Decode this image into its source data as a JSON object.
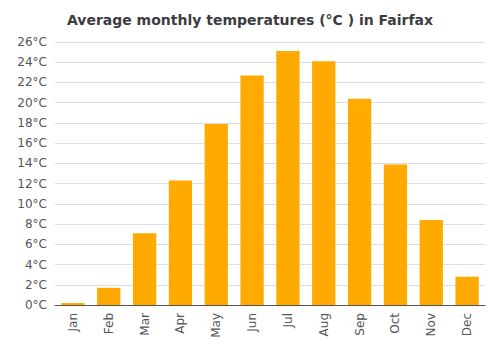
{
  "chart_data": {
    "type": "bar",
    "title": "Average monthly temperatures (°C ) in Fairfax",
    "categories": [
      "Jan",
      "Feb",
      "Mar",
      "Apr",
      "May",
      "Jun",
      "Jul",
      "Aug",
      "Sep",
      "Oct",
      "Nov",
      "Dec"
    ],
    "values": [
      0.2,
      1.7,
      7.1,
      12.3,
      17.9,
      22.7,
      25.1,
      24.1,
      20.4,
      13.9,
      8.4,
      2.8
    ],
    "color": "#FFAA00",
    "ylim": [
      0,
      26
    ],
    "yticks": [
      {
        "value": 0,
        "label": "0°C"
      },
      {
        "value": 2,
        "label": "2°C"
      },
      {
        "value": 4,
        "label": "4°C"
      },
      {
        "value": 6,
        "label": "6°C"
      },
      {
        "value": 8,
        "label": "8°C"
      },
      {
        "value": 10,
        "label": "10°C"
      },
      {
        "value": 12,
        "label": "12°C"
      },
      {
        "value": 14,
        "label": "14°C"
      },
      {
        "value": 16,
        "label": "16°C"
      },
      {
        "value": 18,
        "label": "18°C"
      },
      {
        "value": 20,
        "label": "20°C"
      },
      {
        "value": 22,
        "label": "22°C"
      },
      {
        "value": 24,
        "label": "24°C"
      },
      {
        "value": 26,
        "label": "26°C"
      }
    ],
    "grid": true
  }
}
